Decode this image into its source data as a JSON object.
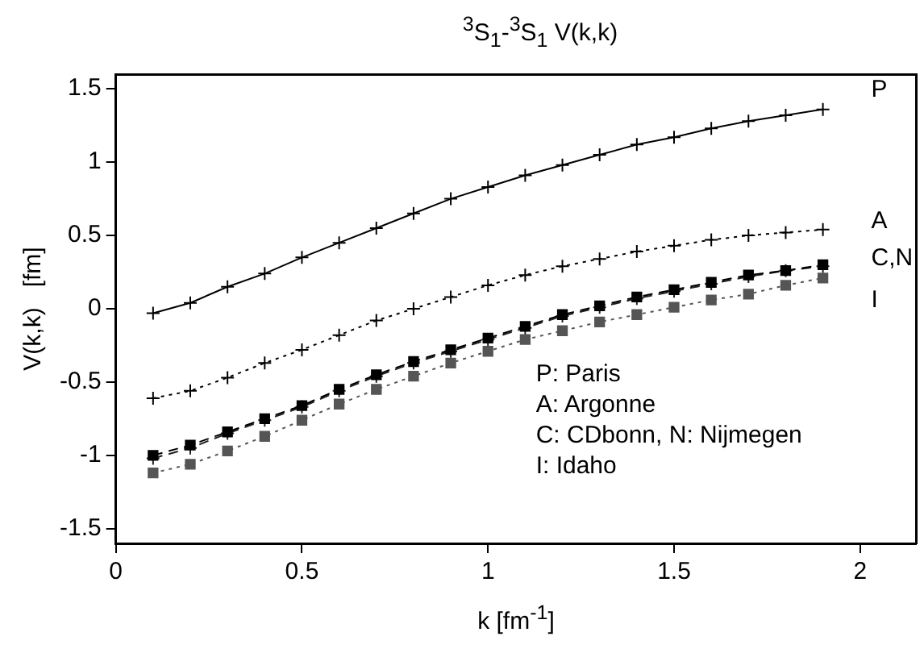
{
  "chart_data": {
    "type": "line",
    "title": "$^{3}$S$_{1}$-$^{3}$S$_{1}$  V(k,k)",
    "xlabel": "k   [fm$^{-1}$]",
    "ylabel": "V(k,k)   [fm]",
    "x": [
      0.1,
      0.2,
      0.3,
      0.4,
      0.5,
      0.6,
      0.7,
      0.8,
      0.9,
      1.0,
      1.1,
      1.2,
      1.3,
      1.4,
      1.5,
      1.6,
      1.7,
      1.8,
      1.9
    ],
    "series": [
      {
        "name": "P",
        "color": "#000000",
        "marker": "cross",
        "line_style": "solid",
        "values": [
          -0.03,
          0.04,
          0.15,
          0.24,
          0.35,
          0.45,
          0.55,
          0.65,
          0.75,
          0.83,
          0.91,
          0.98,
          1.05,
          1.12,
          1.17,
          1.23,
          1.28,
          1.32,
          1.36
        ]
      },
      {
        "name": "A",
        "color": "#000000",
        "marker": "cross",
        "line_style": "dotted",
        "values": [
          -0.61,
          -0.56,
          -0.47,
          -0.37,
          -0.28,
          -0.18,
          -0.08,
          0.0,
          0.08,
          0.16,
          0.23,
          0.29,
          0.34,
          0.39,
          0.43,
          0.47,
          0.5,
          0.52,
          0.54
        ]
      },
      {
        "name": "C,N",
        "color": "#000000",
        "marker": "square",
        "line_style": "dashed",
        "values": [
          -1.0,
          -0.93,
          -0.84,
          -0.75,
          -0.66,
          -0.55,
          -0.45,
          -0.36,
          -0.28,
          -0.2,
          -0.12,
          -0.04,
          0.02,
          0.08,
          0.13,
          0.18,
          0.23,
          0.26,
          0.3
        ]
      },
      {
        "color": "#222222",
        "marker": "cross",
        "line_style": "dashed",
        "values": [
          -1.02,
          -0.95,
          -0.85,
          -0.76,
          -0.67,
          -0.56,
          -0.46,
          -0.37,
          -0.29,
          -0.21,
          -0.13,
          -0.05,
          0.01,
          0.07,
          0.12,
          0.17,
          0.22,
          0.26,
          0.29
        ]
      },
      {
        "name": "I",
        "color": "#555555",
        "marker": "square",
        "line_style": "dotted",
        "values": [
          -1.12,
          -1.06,
          -0.97,
          -0.87,
          -0.76,
          -0.65,
          -0.55,
          -0.46,
          -0.37,
          -0.29,
          -0.21,
          -0.15,
          -0.09,
          -0.04,
          0.01,
          0.06,
          0.1,
          0.16,
          0.21
        ]
      }
    ],
    "xlim": [
      0,
      2.15
    ],
    "xticks": [
      0,
      0.5,
      1,
      1.5,
      2
    ],
    "ylim": [
      -1.6,
      1.6
    ],
    "yticks": [
      -1.5,
      -1,
      -0.5,
      0,
      0.5,
      1,
      1.5
    ],
    "grid": false,
    "legend": false,
    "annotations": [
      "P: Paris",
      "A: Argonne",
      "C: CDbonn, N: Nijmegen",
      "I: Idaho"
    ]
  }
}
